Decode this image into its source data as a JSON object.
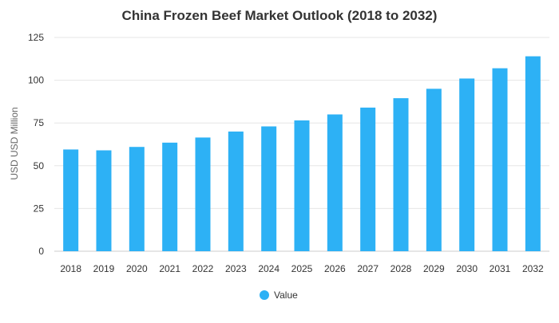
{
  "chart_data": {
    "type": "bar",
    "title": "China Frozen Beef Market Outlook (2018 to 2032)",
    "xlabel": "",
    "ylabel": "USD USD Million",
    "ylim": [
      0,
      125
    ],
    "yticks": [
      0,
      25,
      50,
      75,
      100,
      125
    ],
    "categories": [
      "2018",
      "2019",
      "2020",
      "2021",
      "2022",
      "2023",
      "2024",
      "2025",
      "2026",
      "2027",
      "2028",
      "2029",
      "2030",
      "2031",
      "2032"
    ],
    "series": [
      {
        "name": "Value",
        "color": "#2db1f5",
        "values": [
          59.5,
          59.0,
          61.0,
          63.5,
          66.5,
          70.0,
          73.0,
          76.5,
          80.0,
          84.0,
          89.5,
          95.0,
          101.0,
          107.0,
          114.0
        ]
      }
    ],
    "grid": true,
    "legend_position": "bottom"
  }
}
